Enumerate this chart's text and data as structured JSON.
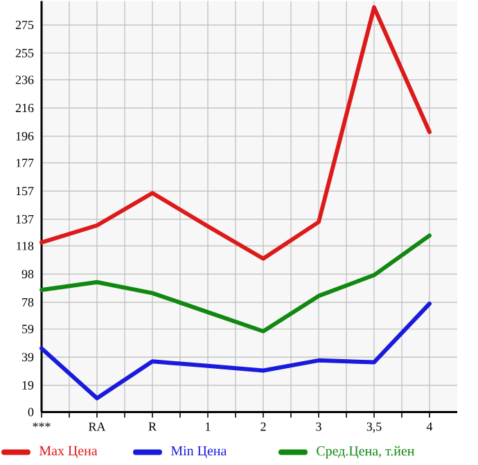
{
  "chart_data": {
    "type": "line",
    "categories": [
      "***",
      "RA",
      "R",
      "1",
      "2",
      "3",
      "3,5",
      "4"
    ],
    "series": [
      {
        "name": "Max Цена",
        "color": "#dd1a1a",
        "values": [
          120.5,
          132.6,
          155.6,
          132,
          109,
          135,
          287.5,
          199
        ]
      },
      {
        "name": "Min Цена",
        "color": "#1a1add",
        "values": [
          45.2,
          9.8,
          36,
          32.8,
          29.5,
          36.7,
          35.4,
          77
        ]
      },
      {
        "name": "Сред.Цена, т.йен",
        "color": "#118811",
        "values": [
          86.8,
          92.3,
          84.5,
          71,
          57.4,
          82.5,
          97.3,
          125.4
        ]
      }
    ],
    "ylim": [
      0,
      292
    ],
    "yticks": [
      0,
      19,
      39,
      59,
      78,
      98,
      118,
      137,
      157,
      177,
      196,
      216,
      236,
      255,
      275
    ],
    "grid": true,
    "legend": "bottom",
    "marker": "none",
    "line_style": "solid"
  }
}
